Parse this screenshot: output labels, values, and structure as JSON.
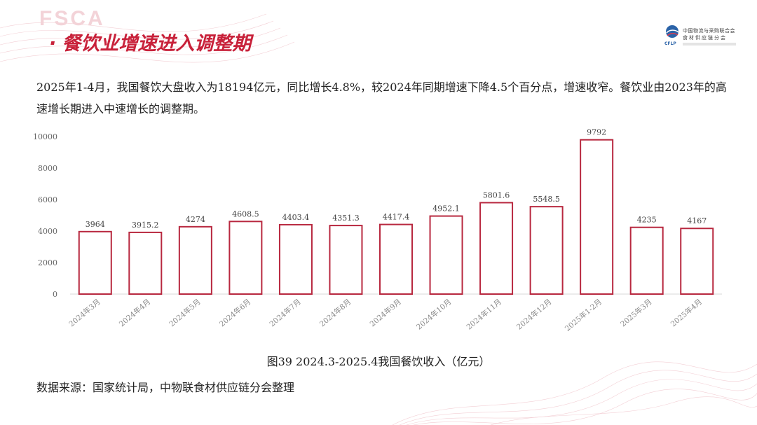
{
  "watermark": "FSCA",
  "header": {
    "bullet": "·",
    "title": "餐饮业增速进入调整期"
  },
  "logo": {
    "line1": "中国物流与采购联合会",
    "line2": "食材供应链分会",
    "abbr": "CFLP"
  },
  "description": "2025年1-4月，我国餐饮大盘收入为18194亿元，同比增长4.8%，较2024年同期增速下降4.5个百分点，增速收窄。餐饮业由2023年的高速增长期进入中速增长的调整期。",
  "colors": {
    "accent": "#c8213a",
    "bar_stroke": "#b8283f"
  },
  "chart_data": {
    "type": "bar",
    "title": "图39 2024.3-2025.4我国餐饮收入（亿元）",
    "categories": [
      "2024年3月",
      "2024年4月",
      "2024年5月",
      "2024年6月",
      "2024年7月",
      "2024年8月",
      "2024年9月",
      "2024年10月",
      "2024年11月",
      "2024年12月",
      "2025年1-2月",
      "2025年3月",
      "2025年4月"
    ],
    "values": [
      3964,
      3915.2,
      4274,
      4608.5,
      4403.4,
      4351.3,
      4417.4,
      4952.1,
      5801.6,
      5548.5,
      9792,
      4235,
      4167
    ],
    "value_labels": [
      "3964",
      "3915.2",
      "4274",
      "4608.5",
      "4403.4",
      "4351.3",
      "4417.4",
      "4952.1",
      "5801.6",
      "5548.5",
      "9792",
      "4235",
      "4167"
    ],
    "yticks": [
      0,
      2000,
      4000,
      6000,
      8000,
      10000
    ],
    "ylim": [
      0,
      10000
    ],
    "xlabel": "",
    "ylabel": "",
    "grid": false,
    "legend": "none"
  },
  "source": "数据来源：国家统计局，中物联食材供应链分会整理"
}
